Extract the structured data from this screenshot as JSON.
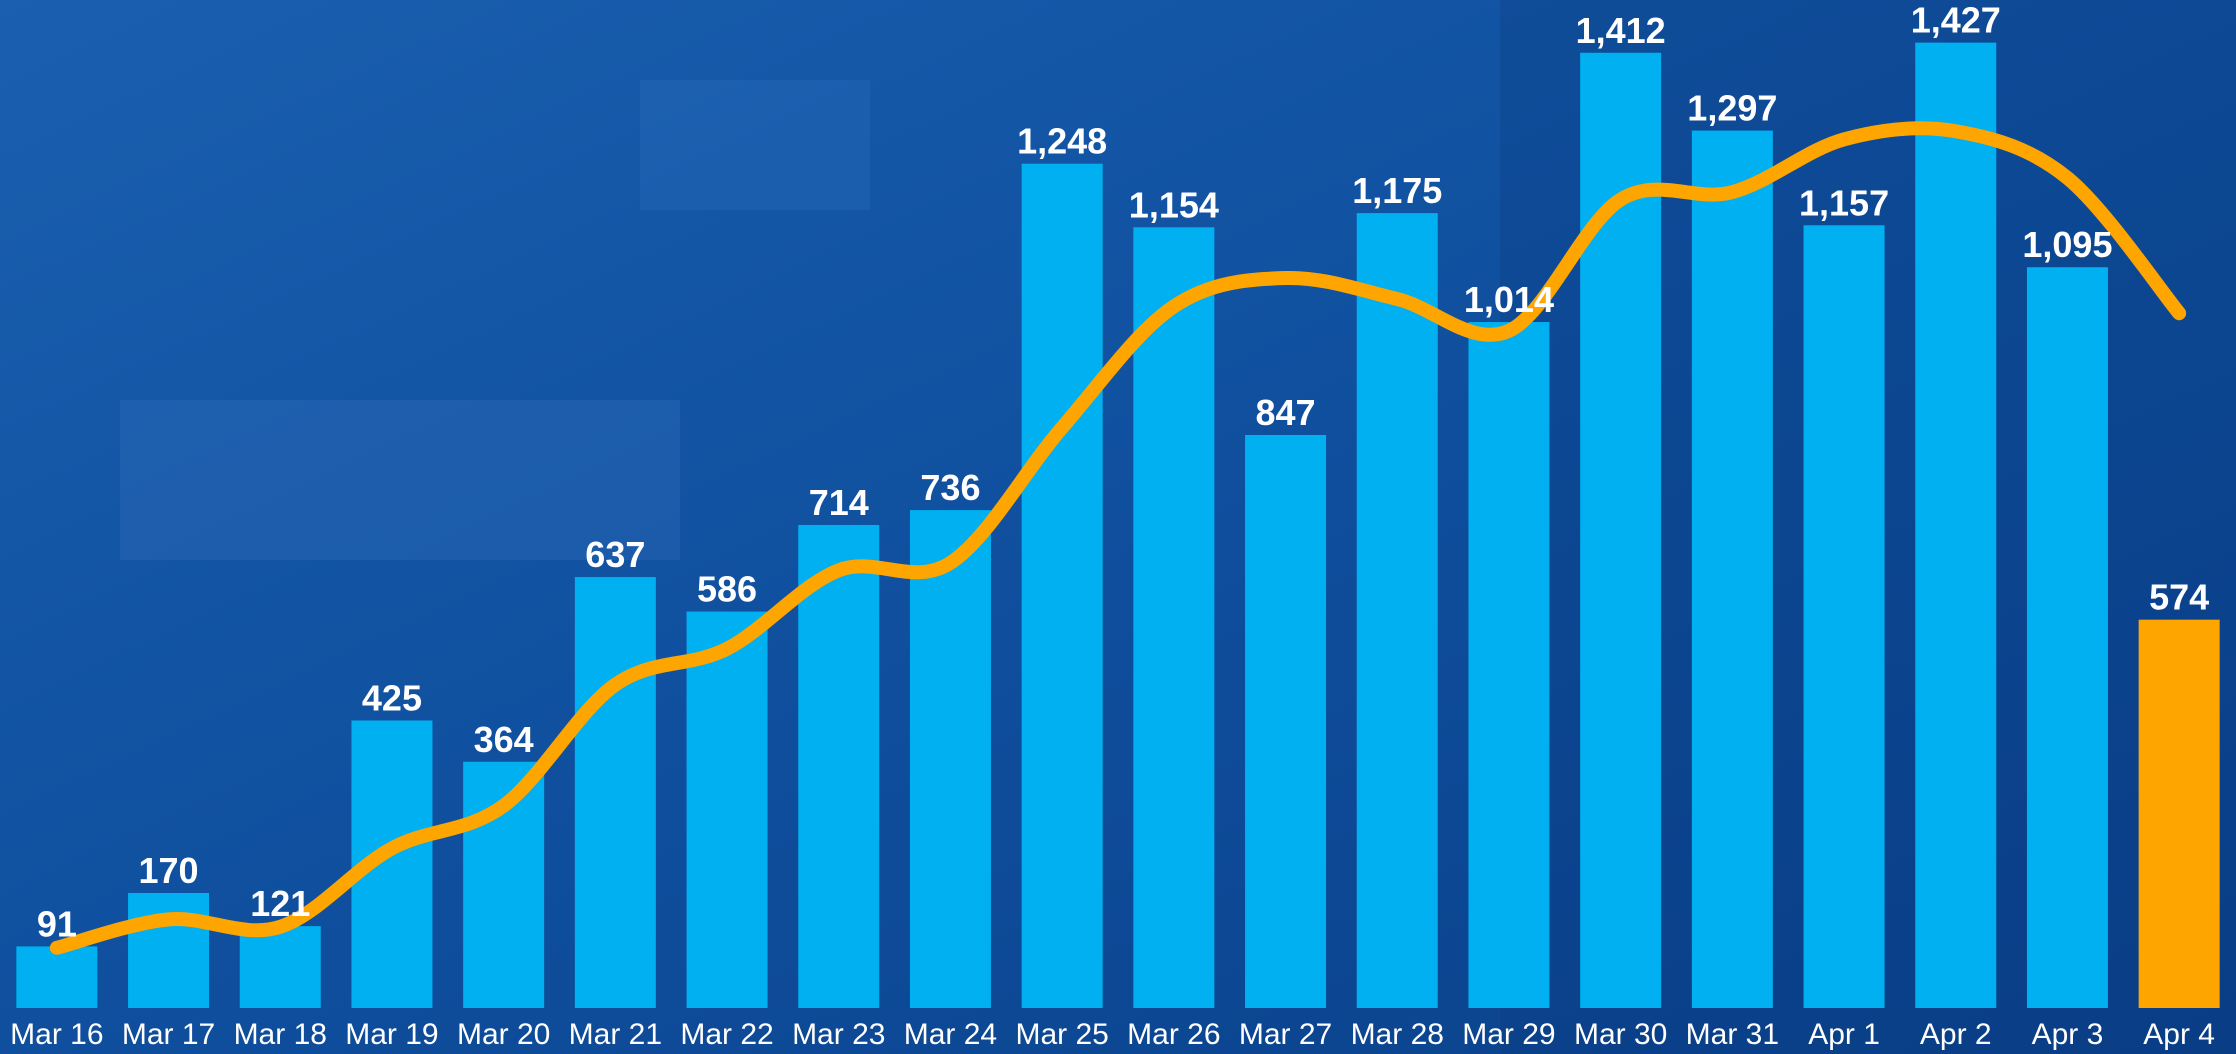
{
  "chart_data": {
    "type": "bar",
    "categories": [
      "Mar 16",
      "Mar 17",
      "Mar 18",
      "Mar 19",
      "Mar 20",
      "Mar 21",
      "Mar 22",
      "Mar 23",
      "Mar 24",
      "Mar 25",
      "Mar 26",
      "Mar 27",
      "Mar 28",
      "Mar 29",
      "Mar 30",
      "Mar 31",
      "Apr 1",
      "Apr 2",
      "Apr 3",
      "Apr 4"
    ],
    "values": [
      91,
      170,
      121,
      425,
      364,
      637,
      586,
      714,
      736,
      1248,
      1154,
      847,
      1175,
      1014,
      1412,
      1297,
      1157,
      1427,
      1095,
      574
    ],
    "value_labels": [
      "91",
      "170",
      "121",
      "425",
      "364",
      "637",
      "586",
      "714",
      "736",
      "1,248",
      "1,154",
      "847",
      "1,175",
      "1,014",
      "1,412",
      "1,297",
      "1,157",
      "1,427",
      "1,095",
      "574"
    ],
    "colors": [
      "#00b0f0",
      "#00b0f0",
      "#00b0f0",
      "#00b0f0",
      "#00b0f0",
      "#00b0f0",
      "#00b0f0",
      "#00b0f0",
      "#00b0f0",
      "#00b0f0",
      "#00b0f0",
      "#00b0f0",
      "#00b0f0",
      "#00b0f0",
      "#00b0f0",
      "#00b0f0",
      "#00b0f0",
      "#00b0f0",
      "#00b0f0",
      "#ffa500"
    ],
    "trend_values": [
      89,
      131,
      120,
      236,
      299,
      478,
      531,
      647,
      658,
      858,
      1037,
      1079,
      1048,
      1001,
      1195,
      1206,
      1284,
      1296,
      1227,
      1027
    ],
    "trend_color": "#ffa500",
    "ylim": [
      0,
      1490
    ]
  }
}
